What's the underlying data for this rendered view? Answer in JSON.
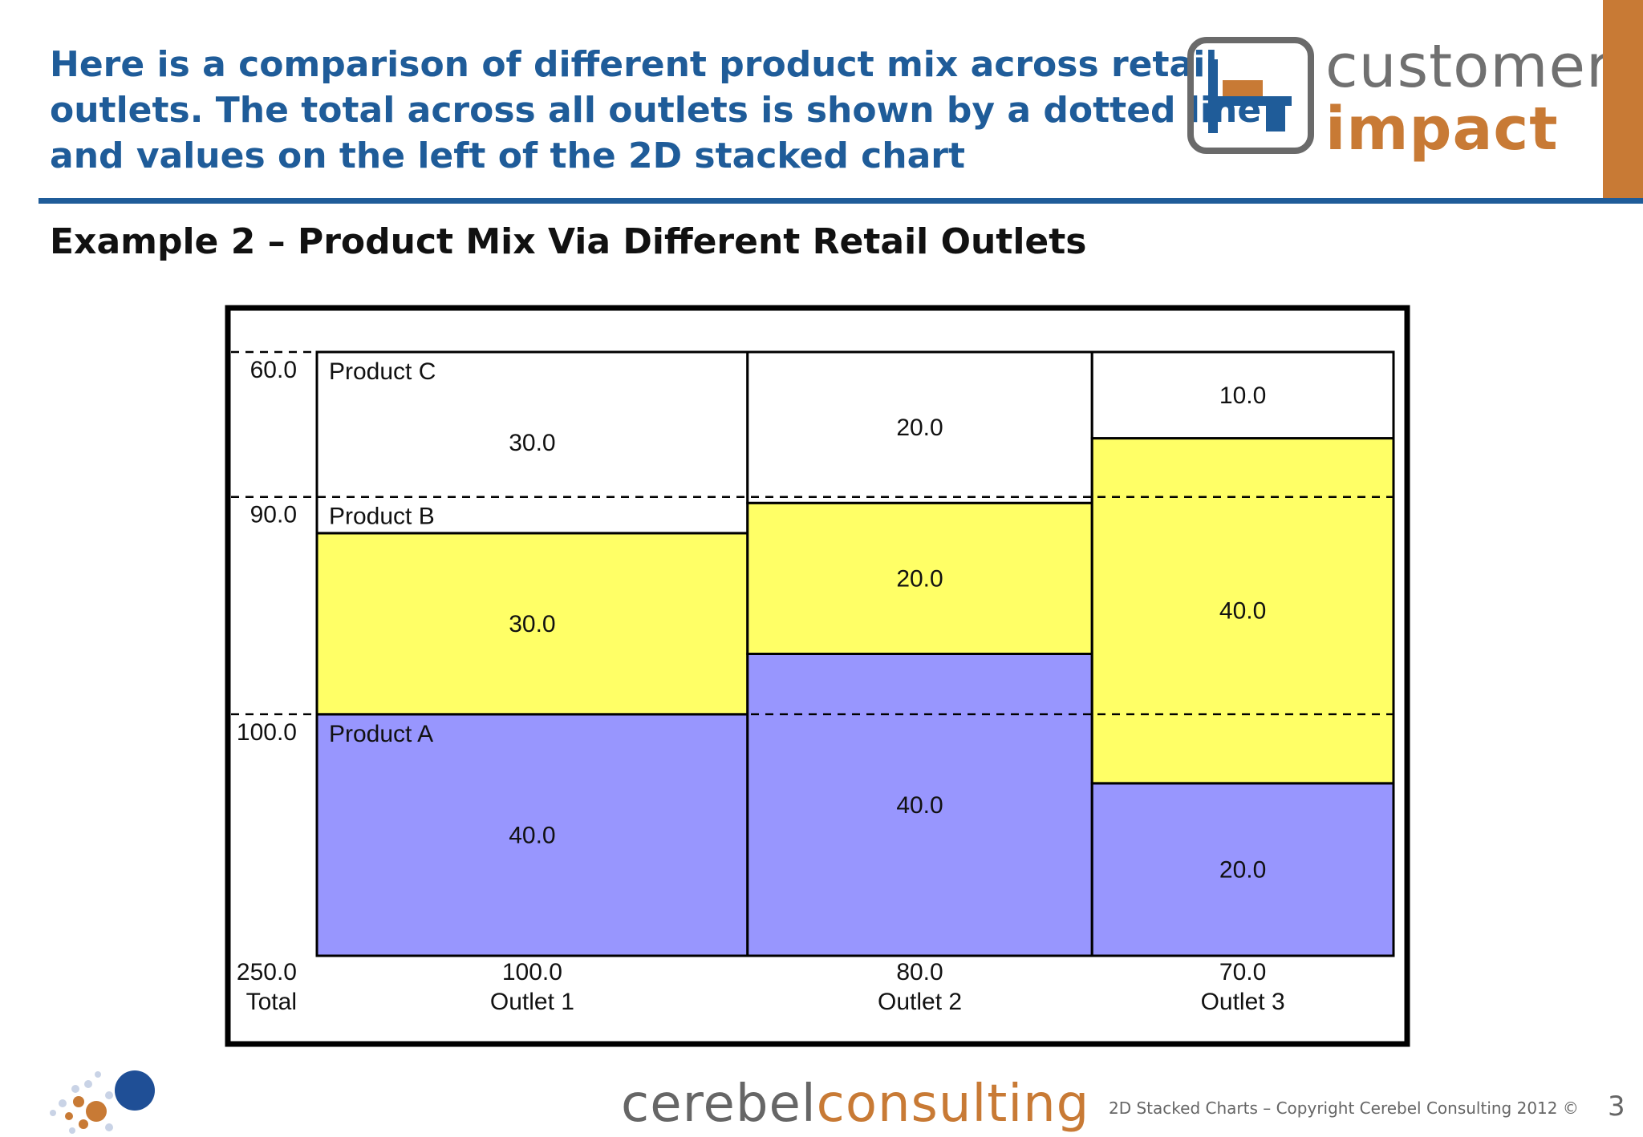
{
  "slide": {
    "headline_lines": [
      "Here is a comparison of different product mix across retail",
      "outlets. The total across all outlets is shown by a dotted line",
      "and values on the left of the 2D stacked chart"
    ],
    "subtitle": "Example 2 – Product Mix Via Different Retail Outlets",
    "logo": {
      "word1": "customer",
      "word2": "impact"
    },
    "footer": {
      "brand_part1": "cerebel",
      "brand_part2": "consulting",
      "copyright": "2D Stacked Charts – Copyright Cerebel Consulting 2012 ©",
      "page_number": "3"
    }
  },
  "colors": {
    "accent_blue": "#1f5c99",
    "accent_orange": "#c87a35",
    "product_a": "#9896fe",
    "product_b": "#ffff66",
    "product_c": "#ffffff"
  },
  "chart_data": {
    "type": "bar",
    "subtype": "2d-stacked-mekko",
    "grand_total": {
      "value_label": "250.0",
      "label": "Total"
    },
    "categories": [
      "Outlet 1",
      "Outlet 2",
      "Outlet 3"
    ],
    "category_totals": [
      100.0,
      80.0,
      70.0
    ],
    "category_total_labels": [
      "100.0",
      "80.0",
      "70.0"
    ],
    "series": [
      {
        "name": "Product A",
        "values": [
          40.0,
          40.0,
          20.0
        ],
        "labels": [
          "40.0",
          "40.0",
          "20.0"
        ],
        "color": "#9896fe"
      },
      {
        "name": "Product B",
        "values": [
          30.0,
          20.0,
          40.0
        ],
        "labels": [
          "30.0",
          "20.0",
          "40.0"
        ],
        "color": "#ffff66"
      },
      {
        "name": "Product C",
        "values": [
          30.0,
          20.0,
          10.0
        ],
        "labels": [
          "30.0",
          "20.0",
          "10.0"
        ],
        "color": "#ffffff"
      }
    ],
    "overall_series_totals": [
      {
        "name": "Product A",
        "value": 100.0,
        "label": "100.0"
      },
      {
        "name": "Product B",
        "value": 90.0,
        "label": "90.0"
      },
      {
        "name": "Product C",
        "value": 60.0,
        "label": "60.0"
      }
    ],
    "grid": false,
    "legend": "inline labels"
  }
}
